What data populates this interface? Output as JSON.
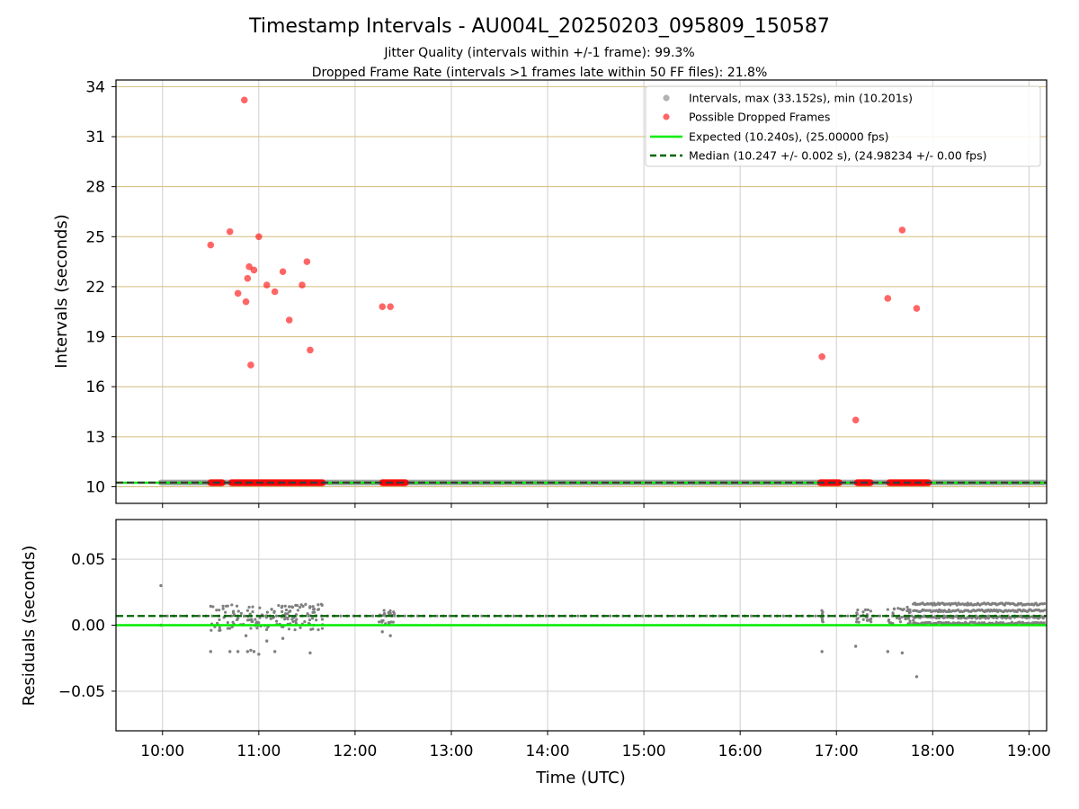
{
  "figure": {
    "title": "Timestamp Intervals - AU004L_20250203_095809_150587",
    "subtitle_1": "Jitter Quality (intervals within +/-1 frame): 99.3%",
    "subtitle_2": "Dropped Frame Rate (intervals >1 frames late within 50 FF files): 21.8%"
  },
  "colors": {
    "intervals": "#a0a0a0",
    "dropped": "#ff0000",
    "expected": "#00ee00",
    "median": "#006400",
    "residual_points": "#808080",
    "hgrid_top": "#d4bc7a",
    "grid": "#cfcfcf"
  },
  "chart_data": [
    {
      "type": "scatter",
      "xlabel": "",
      "ylabel": "Intervals (seconds)",
      "xlim": [
        "09:31",
        "19:11"
      ],
      "ylim": [
        9.0,
        34.4
      ],
      "yticks": [
        10,
        13,
        16,
        19,
        22,
        25,
        28,
        31,
        34
      ],
      "grid": "on",
      "legend_position": "top-right",
      "legend": [
        "Intervals, max (33.152s), min (10.201s)",
        "Possible Dropped Frames",
        "Expected (10.240s), (25.00000 fps)",
        "Median (10.247 +/- 0.002 s), (24.98234 +/- 0.00 fps)"
      ],
      "series": [
        {
          "name": "Intervals, max (33.152s), min (10.201s)",
          "kind": "scatter",
          "x_range": [
            "09:59",
            "19:10"
          ],
          "y": 10.247
        },
        {
          "name": "Possible Dropped Frames",
          "kind": "scatter",
          "points": [
            [
              "10:30",
              24.5
            ],
            [
              "10:42",
              25.3
            ],
            [
              "10:47",
              21.6
            ],
            [
              "10:51",
              33.2
            ],
            [
              "10:52",
              21.1
            ],
            [
              "10:53",
              22.5
            ],
            [
              "10:54",
              23.2
            ],
            [
              "10:55",
              17.3
            ],
            [
              "10:57",
              23.0
            ],
            [
              "11:00",
              25.0
            ],
            [
              "11:05",
              22.1
            ],
            [
              "11:10",
              21.7
            ],
            [
              "11:15",
              22.9
            ],
            [
              "11:19",
              20.0
            ],
            [
              "11:27",
              22.1
            ],
            [
              "11:30",
              23.5
            ],
            [
              "11:32",
              18.2
            ],
            [
              "12:17",
              20.8
            ],
            [
              "12:22",
              20.8
            ],
            [
              "16:51",
              17.8
            ],
            [
              "17:12",
              14.0
            ],
            [
              "17:32",
              21.3
            ],
            [
              "17:41",
              25.4
            ],
            [
              "17:50",
              20.7
            ]
          ],
          "baseline_runs": [
            [
              "10:30",
              "10:38"
            ],
            [
              "10:43",
              "11:40"
            ],
            [
              "12:17",
              "12:32"
            ],
            [
              "16:50",
              "17:02"
            ],
            [
              "17:13",
              "17:22"
            ],
            [
              "17:33",
              "17:58"
            ]
          ],
          "baseline_y": 10.24
        },
        {
          "name": "Expected (10.240s), (25.00000 fps)",
          "kind": "hline",
          "y": 10.24
        },
        {
          "name": "Median (10.247 +/- 0.002 s), (24.98234 +/- 0.00 fps)",
          "kind": "hline-dashed",
          "y": 10.247
        }
      ]
    },
    {
      "type": "scatter",
      "xlabel": "Time (UTC)",
      "ylabel": "Residuals (seconds)",
      "xlim": [
        "09:31",
        "19:11"
      ],
      "ylim": [
        -0.08,
        0.08
      ],
      "yticks": [
        0.05,
        0.0,
        -0.05
      ],
      "ytick_labels": [
        "0.05",
        "0.00",
        "−0.05"
      ],
      "xticks": [
        "10:00",
        "11:00",
        "12:00",
        "13:00",
        "14:00",
        "15:00",
        "16:00",
        "17:00",
        "18:00",
        "19:00"
      ],
      "grid": "on",
      "series": [
        {
          "name": "Expected",
          "kind": "hline",
          "y": 0.0
        },
        {
          "name": "Median",
          "kind": "hline-dashed",
          "y": 0.007
        },
        {
          "name": "Residuals",
          "kind": "scatter",
          "baseline": 0.007,
          "outliers": [
            [
              "09:59",
              0.03
            ],
            [
              "09:59",
              0.0
            ],
            [
              "10:30",
              -0.02
            ],
            [
              "10:42",
              -0.02
            ],
            [
              "10:47",
              -0.02
            ],
            [
              "10:52",
              -0.008
            ],
            [
              "10:53",
              -0.02
            ],
            [
              "10:55",
              -0.019
            ],
            [
              "10:57",
              -0.02
            ],
            [
              "11:00",
              -0.022
            ],
            [
              "11:05",
              -0.012
            ],
            [
              "11:08",
              0.012
            ],
            [
              "11:10",
              -0.02
            ],
            [
              "11:15",
              -0.01
            ],
            [
              "11:19",
              0.014
            ],
            [
              "11:23",
              0.015
            ],
            [
              "11:32",
              -0.021
            ],
            [
              "12:17",
              -0.005
            ],
            [
              "12:22",
              -0.008
            ],
            [
              "16:51",
              -0.02
            ],
            [
              "17:12",
              -0.016
            ],
            [
              "17:32",
              -0.02
            ],
            [
              "17:41",
              -0.021
            ],
            [
              "17:50",
              -0.039
            ]
          ],
          "clusters": [
            {
              "x_range": [
                "10:30",
                "11:40"
              ],
              "y_range": [
                -0.004,
                0.016
              ]
            },
            {
              "x_range": [
                "12:15",
                "12:25"
              ],
              "y_range": [
                0.001,
                0.012
              ]
            },
            {
              "x_range": [
                "16:48",
                "16:52"
              ],
              "y_range": [
                0.002,
                0.012
              ]
            },
            {
              "x_range": [
                "17:12",
                "17:22"
              ],
              "y_range": [
                0.002,
                0.012
              ]
            },
            {
              "x_range": [
                "17:32",
                "17:48"
              ],
              "y_range": [
                0.001,
                0.014
              ]
            },
            {
              "x_range": [
                "17:48",
                "19:10"
              ],
              "y_range": [
                0.001,
                0.016
              ],
              "band": true
            }
          ]
        }
      ]
    }
  ]
}
